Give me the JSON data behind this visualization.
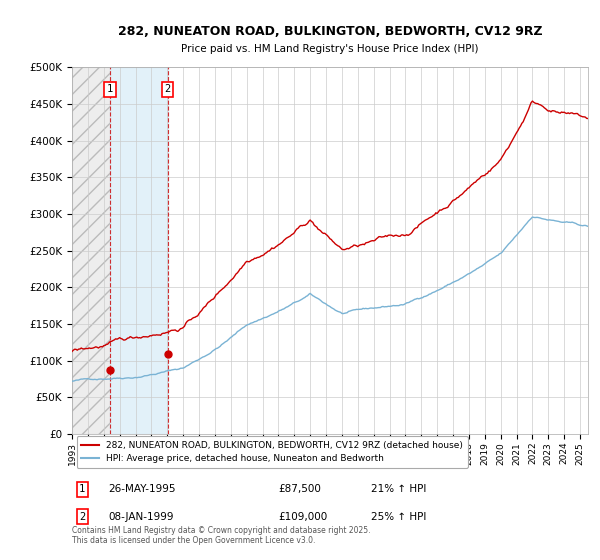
{
  "title_line1": "282, NUNEATON ROAD, BULKINGTON, BEDWORTH, CV12 9RZ",
  "title_line2": "Price paid vs. HM Land Registry's House Price Index (HPI)",
  "ylim": [
    0,
    500000
  ],
  "yticks": [
    0,
    50000,
    100000,
    150000,
    200000,
    250000,
    300000,
    350000,
    400000,
    450000,
    500000
  ],
  "ytick_labels": [
    "£0",
    "£50K",
    "£100K",
    "£150K",
    "£200K",
    "£250K",
    "£300K",
    "£350K",
    "£400K",
    "£450K",
    "£500K"
  ],
  "hpi_color": "#7ab3d4",
  "price_color": "#cc0000",
  "bg_color": "#ffffff",
  "grid_color": "#cccccc",
  "xmin": 1993,
  "xmax": 2025.5,
  "sale1_date": 1995.38,
  "sale1_price": 87500,
  "sale2_date": 1999.03,
  "sale2_price": 109000,
  "legend_price_label": "282, NUNEATON ROAD, BULKINGTON, BEDWORTH, CV12 9RZ (detached house)",
  "legend_hpi_label": "HPI: Average price, detached house, Nuneaton and Bedworth",
  "sale1_date_str": "26-MAY-1995",
  "sale1_price_str": "£87,500",
  "sale1_hpi_str": "21% ↑ HPI",
  "sale2_date_str": "08-JAN-1999",
  "sale2_price_str": "£109,000",
  "sale2_hpi_str": "25% ↑ HPI",
  "copyright": "Contains HM Land Registry data © Crown copyright and database right 2025.\nThis data is licensed under the Open Government Licence v3.0."
}
